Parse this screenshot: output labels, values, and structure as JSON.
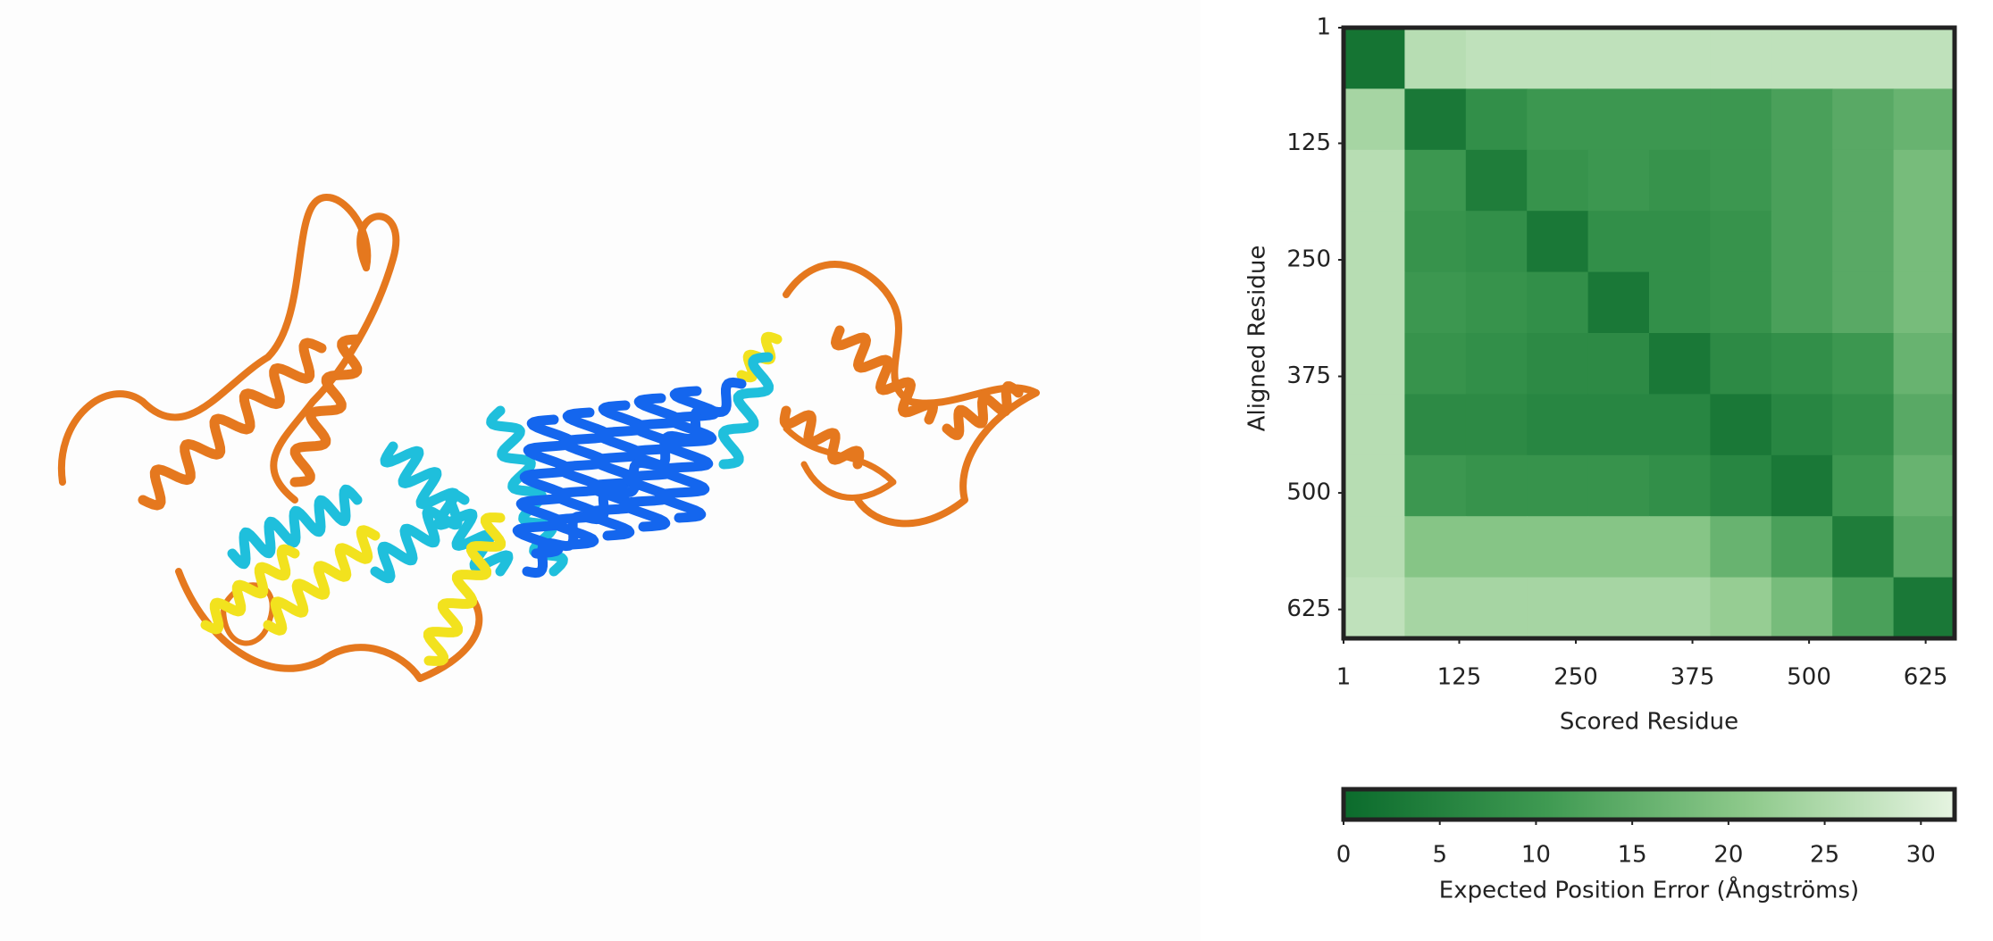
{
  "chart_data": {
    "type": "heatmap",
    "xlabel": "Scored Residue",
    "ylabel": "Aligned Residue",
    "xlim": [
      1,
      656
    ],
    "ylim": [
      1,
      656
    ],
    "xticks": [
      1,
      125,
      250,
      375,
      500,
      625
    ],
    "yticks": [
      1,
      125,
      250,
      375,
      500,
      625
    ],
    "values": [
      [
        2,
        26,
        27,
        27,
        27,
        27,
        27,
        27,
        27,
        27
      ],
      [
        24,
        3,
        8,
        10,
        10,
        10,
        10,
        12,
        14,
        16
      ],
      [
        26,
        10,
        4,
        9,
        10,
        9,
        10,
        12,
        14,
        18
      ],
      [
        26,
        9,
        8,
        3,
        8,
        8,
        9,
        12,
        14,
        18
      ],
      [
        26,
        10,
        9,
        8,
        3,
        8,
        9,
        12,
        14,
        18
      ],
      [
        26,
        9,
        8,
        7,
        7,
        3,
        7,
        8,
        10,
        16
      ],
      [
        26,
        7,
        7,
        6,
        6,
        6,
        3,
        6,
        8,
        14
      ],
      [
        26,
        10,
        9,
        9,
        9,
        8,
        6,
        3,
        10,
        16
      ],
      [
        26,
        20,
        20,
        20,
        20,
        20,
        16,
        12,
        4,
        14
      ],
      [
        27,
        24,
        24,
        24,
        24,
        24,
        22,
        18,
        12,
        3
      ]
    ],
    "colorbar": {
      "label": "Expected Position Error (Ångströms)",
      "clim": [
        0,
        31.75
      ],
      "ticks": [
        0,
        5,
        10,
        15,
        20,
        25,
        30
      ],
      "colors": [
        "#0b6b2c",
        "#3f9a52",
        "#8fca8c",
        "#e6f4e1"
      ]
    }
  }
}
